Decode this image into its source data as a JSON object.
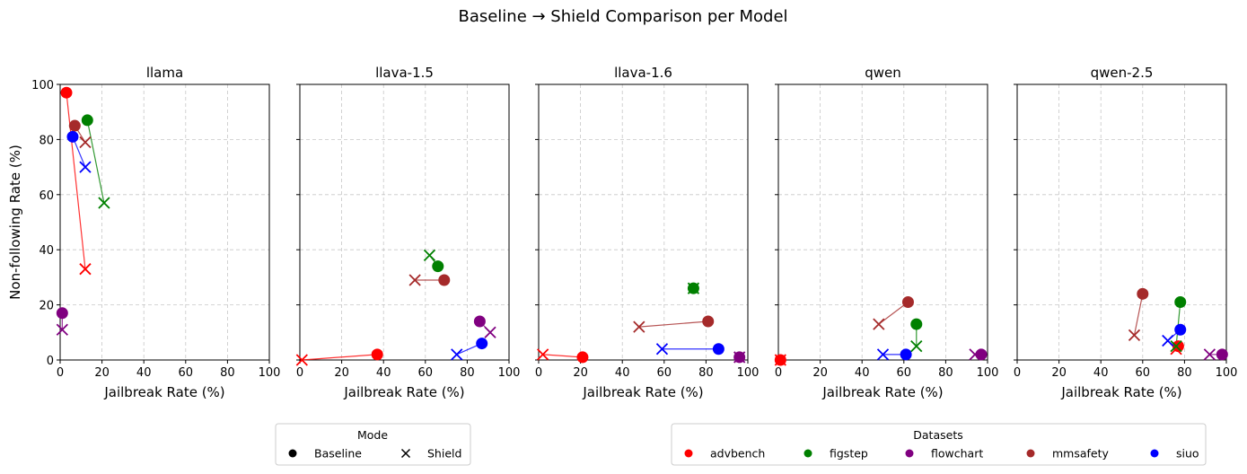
{
  "chart_data": {
    "type": "scatter",
    "title": "Baseline → Shield Comparison per Model",
    "xlabel": "Jailbreak Rate (%)",
    "ylabel": "Non-following Rate (%)",
    "xlim": [
      0,
      100
    ],
    "ylim": [
      0,
      100
    ],
    "xticks": [
      "0",
      "20",
      "40",
      "60",
      "80",
      "100"
    ],
    "yticks": [
      "0",
      "20",
      "40",
      "60",
      "80",
      "100"
    ],
    "grid": true,
    "colors": {
      "advbench": "#ff0000",
      "figstep": "#008000",
      "flowchart": "#800080",
      "mmsafety": "#a52a2a",
      "siuo": "#0000ff"
    },
    "legends": {
      "mode": {
        "title": "Mode",
        "entries": [
          {
            "label": "Baseline",
            "marker": "circle"
          },
          {
            "label": "Shield",
            "marker": "x"
          }
        ]
      },
      "datasets": {
        "title": "Datasets",
        "entries": [
          "advbench",
          "figstep",
          "flowchart",
          "mmsafety",
          "siuo"
        ]
      }
    },
    "panels": [
      {
        "model": "llama",
        "points": [
          {
            "dataset": "advbench",
            "baseline": [
              3,
              97
            ],
            "shield": [
              12,
              33
            ]
          },
          {
            "dataset": "figstep",
            "baseline": [
              13,
              87
            ],
            "shield": [
              21,
              57
            ]
          },
          {
            "dataset": "flowchart",
            "baseline": [
              1,
              17
            ],
            "shield": [
              1,
              11
            ]
          },
          {
            "dataset": "mmsafety",
            "baseline": [
              7,
              85
            ],
            "shield": [
              12,
              79
            ]
          },
          {
            "dataset": "siuo",
            "baseline": [
              6,
              81
            ],
            "shield": [
              12,
              70
            ]
          }
        ]
      },
      {
        "model": "llava-1.5",
        "points": [
          {
            "dataset": "advbench",
            "baseline": [
              37,
              2
            ],
            "shield": [
              1,
              0
            ]
          },
          {
            "dataset": "figstep",
            "baseline": [
              66,
              34
            ],
            "shield": [
              62,
              38
            ]
          },
          {
            "dataset": "flowchart",
            "baseline": [
              86,
              14
            ],
            "shield": [
              91,
              10
            ]
          },
          {
            "dataset": "mmsafety",
            "baseline": [
              69,
              29
            ],
            "shield": [
              55,
              29
            ]
          },
          {
            "dataset": "siuo",
            "baseline": [
              87,
              6
            ],
            "shield": [
              75,
              2
            ]
          }
        ]
      },
      {
        "model": "llava-1.6",
        "points": [
          {
            "dataset": "advbench",
            "baseline": [
              21,
              1
            ],
            "shield": [
              2,
              2
            ]
          },
          {
            "dataset": "figstep",
            "baseline": [
              74,
              26
            ],
            "shield": [
              74,
              26
            ]
          },
          {
            "dataset": "flowchart",
            "baseline": [
              96,
              1
            ],
            "shield": [
              96,
              1
            ]
          },
          {
            "dataset": "mmsafety",
            "baseline": [
              81,
              14
            ],
            "shield": [
              48,
              12
            ]
          },
          {
            "dataset": "siuo",
            "baseline": [
              86,
              4
            ],
            "shield": [
              59,
              4
            ]
          }
        ]
      },
      {
        "model": "qwen",
        "points": [
          {
            "dataset": "advbench",
            "baseline": [
              1,
              0
            ],
            "shield": [
              1,
              0
            ]
          },
          {
            "dataset": "figstep",
            "baseline": [
              66,
              13
            ],
            "shield": [
              66,
              5
            ]
          },
          {
            "dataset": "flowchart",
            "baseline": [
              97,
              2
            ],
            "shield": [
              94,
              2
            ]
          },
          {
            "dataset": "mmsafety",
            "baseline": [
              62,
              21
            ],
            "shield": [
              48,
              13
            ]
          },
          {
            "dataset": "siuo",
            "baseline": [
              61,
              2
            ],
            "shield": [
              50,
              2
            ]
          }
        ]
      },
      {
        "model": "qwen-2.5",
        "points": [
          {
            "dataset": "advbench",
            "baseline": [
              77,
              5
            ],
            "shield": [
              76,
              4
            ]
          },
          {
            "dataset": "figstep",
            "baseline": [
              78,
              21
            ],
            "shield": [
              76,
              5
            ]
          },
          {
            "dataset": "flowchart",
            "baseline": [
              98,
              2
            ],
            "shield": [
              92,
              2
            ]
          },
          {
            "dataset": "mmsafety",
            "baseline": [
              60,
              24
            ],
            "shield": [
              56,
              9
            ]
          },
          {
            "dataset": "siuo",
            "baseline": [
              78,
              11
            ],
            "shield": [
              72,
              7
            ]
          }
        ]
      }
    ]
  }
}
